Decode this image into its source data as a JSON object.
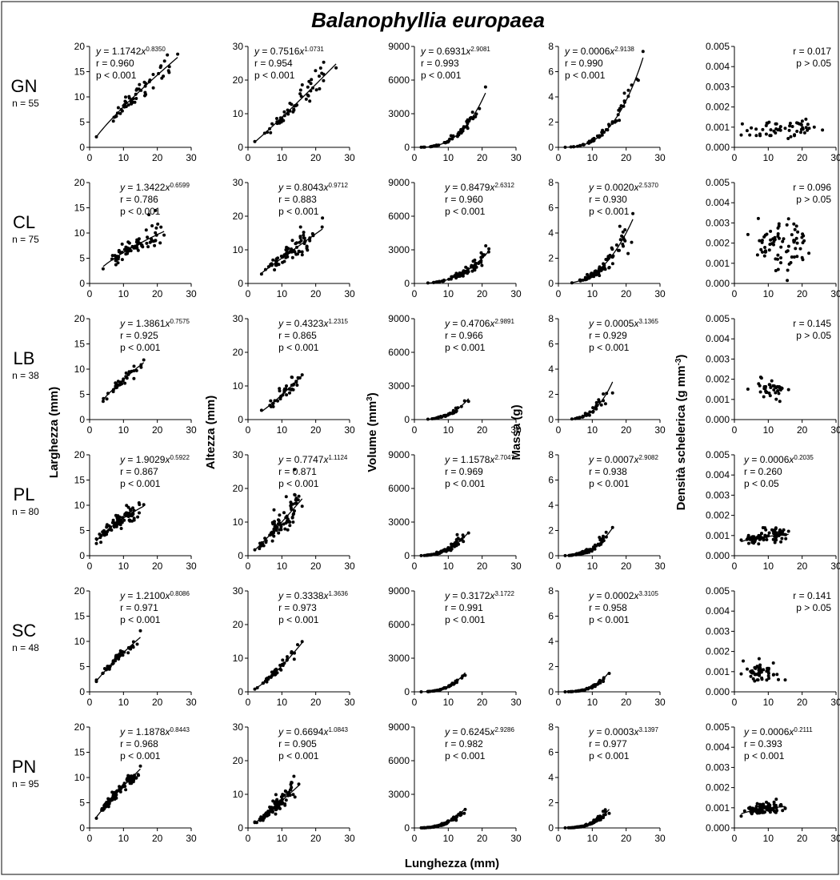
{
  "title": "Balanophyllia europaea",
  "xlabel": "Lunghezza (mm)",
  "ylabels": [
    "Larghezza (mm)",
    "Altezza (mm)",
    "Volume (mm",
    "Massa (g)",
    "Densità schelerica (g mm"
  ],
  "ylabel_sup": [
    "",
    "",
    "3",
    "",
    "-3"
  ],
  "ylabel_close": [
    "",
    "",
    ")",
    "",
    ")"
  ],
  "sites": [
    {
      "code": "GN",
      "n": "n = 55"
    },
    {
      "code": "CL",
      "n": "n = 75"
    },
    {
      "code": "LB",
      "n": "n = 38"
    },
    {
      "code": "PL",
      "n": "n = 80"
    },
    {
      "code": "SC",
      "n": "n = 48"
    },
    {
      "code": "PN",
      "n": "n = 95"
    }
  ],
  "chart_data": {
    "type": "scatter",
    "x_ticks": [
      "0",
      "10",
      "20",
      "30"
    ],
    "xlim": [
      0,
      30
    ],
    "columns": [
      {
        "name": "Larghezza",
        "ylim": [
          0,
          20
        ],
        "y_ticks": [
          "0",
          "5",
          "10",
          "15",
          "20"
        ]
      },
      {
        "name": "Altezza",
        "ylim": [
          0,
          30
        ],
        "y_ticks": [
          "0",
          "10",
          "20",
          "30"
        ]
      },
      {
        "name": "Volume",
        "ylim": [
          0,
          9000
        ],
        "y_ticks": [
          "0",
          "3000",
          "6000",
          "9000"
        ]
      },
      {
        "name": "Massa",
        "ylim": [
          0,
          8
        ],
        "y_ticks": [
          "0",
          "2",
          "4",
          "6",
          "8"
        ]
      },
      {
        "name": "Densità",
        "ylim": [
          0,
          0.005
        ],
        "y_ticks": [
          "0.000",
          "0.001",
          "0.002",
          "0.003",
          "0.004",
          "0.005"
        ]
      }
    ],
    "panels": [
      [
        {
          "a": 1.1742,
          "b": 0.835,
          "coef": "1.1742",
          "exp": "0.8350",
          "r": "r = 0.960",
          "p": "p < 0.001",
          "xr": [
            2,
            26
          ],
          "scatter": 0.09
        },
        {
          "a": 0.7516,
          "b": 1.0731,
          "coef": "0.7516",
          "exp": "1.0731",
          "r": "r = 0.954",
          "p": "p < 0.001",
          "xr": [
            2,
            26
          ],
          "scatter": 0.12
        },
        {
          "a": 0.6931,
          "b": 2.9081,
          "coef": "0.6931",
          "exp": "2.9081",
          "r": "r = 0.993",
          "p": "p < 0.001",
          "xr": [
            2,
            21
          ],
          "scatter": 0.1
        },
        {
          "a": 0.0006,
          "b": 2.9138,
          "coef": "0.0006",
          "exp": "2.9138",
          "r": "r = 0.990",
          "p": "p < 0.001",
          "xr": [
            2,
            25
          ],
          "scatter": 0.12
        },
        {
          "eq": false,
          "mean": 0.00095,
          "sd": 0.0002,
          "r": "r = 0.017",
          "p": "p > 0.05",
          "xr": [
            2,
            26
          ]
        }
      ],
      [
        {
          "a": 1.3422,
          "b": 0.6599,
          "coef": "1.3422",
          "exp": "0.6599",
          "r": "r = 0.786",
          "p": "p < 0.001",
          "xr": [
            4,
            22
          ],
          "scatter": 0.14
        },
        {
          "a": 0.8043,
          "b": 0.9712,
          "coef": "0.8043",
          "exp": "0.9712",
          "r": "r = 0.883",
          "p": "p < 0.001",
          "xr": [
            4,
            22
          ],
          "scatter": 0.15
        },
        {
          "a": 0.8479,
          "b": 2.6312,
          "coef": "0.8479",
          "exp": "2.6312",
          "r": "r = 0.960",
          "p": "p < 0.001",
          "xr": [
            4,
            22
          ],
          "scatter": 0.18
        },
        {
          "a": 0.002,
          "b": 2.537,
          "coef": "0.0020",
          "exp": "2.5370",
          "r": "r = 0.930",
          "p": "p < 0.001",
          "xr": [
            4,
            22
          ],
          "scatter": 0.2
        },
        {
          "eq": false,
          "mean": 0.0018,
          "sd": 0.0006,
          "r": "r = 0.096",
          "p": "p > 0.05",
          "xr": [
            4,
            22
          ]
        }
      ],
      [
        {
          "a": 1.3861,
          "b": 0.7575,
          "coef": "1.3861",
          "exp": "0.7575",
          "r": "r = 0.925",
          "p": "p < 0.001",
          "xr": [
            4,
            16
          ],
          "scatter": 0.08
        },
        {
          "a": 0.4323,
          "b": 1.2315,
          "coef": "0.4323",
          "exp": "1.2315",
          "r": "r = 0.865",
          "p": "p < 0.001",
          "xr": [
            4,
            16
          ],
          "scatter": 0.14
        },
        {
          "a": 0.4706,
          "b": 2.9891,
          "coef": "0.4706",
          "exp": "2.9891",
          "r": "r = 0.966",
          "p": "p < 0.001",
          "xr": [
            4,
            16
          ],
          "scatter": 0.16
        },
        {
          "a": 0.0005,
          "b": 3.1365,
          "coef": "0.0005",
          "exp": "3.1365",
          "r": "r = 0.929",
          "p": "p < 0.001",
          "xr": [
            4,
            16
          ],
          "scatter": 0.18
        },
        {
          "eq": false,
          "mean": 0.0015,
          "sd": 0.0003,
          "r": "r = 0.145",
          "p": "p > 0.05",
          "xr": [
            4,
            16
          ]
        }
      ],
      [
        {
          "a": 1.9029,
          "b": 0.5922,
          "coef": "1.9029",
          "exp": "0.5922",
          "r": "r = 0.867",
          "p": "p < 0.001",
          "xr": [
            2,
            16
          ],
          "scatter": 0.1
        },
        {
          "a": 0.7747,
          "b": 1.1124,
          "coef": "0.7747",
          "exp": "1.1124",
          "r": "r = 0.871",
          "p": "p < 0.001",
          "xr": [
            2,
            16
          ],
          "scatter": 0.18
        },
        {
          "a": 1.1578,
          "b": 2.7047,
          "coef": "1.1578",
          "exp": "2.7047",
          "r": "r = 0.969",
          "p": "p < 0.001",
          "xr": [
            2,
            16
          ],
          "scatter": 0.18
        },
        {
          "a": 0.0007,
          "b": 2.9082,
          "coef": "0.0007",
          "exp": "2.9082",
          "r": "r = 0.938",
          "p": "p < 0.001",
          "xr": [
            2,
            16
          ],
          "scatter": 0.2
        },
        {
          "a": 0.0006,
          "b": 0.2035,
          "coef": "0.0006",
          "exp": "0.2035",
          "r": "r = 0.260",
          "p": "p < 0.05",
          "xr": [
            2,
            16
          ],
          "scatter": 0.18
        }
      ],
      [
        {
          "a": 1.21,
          "b": 0.8086,
          "coef": "1.2100",
          "exp": "0.8086",
          "r": "r = 0.971",
          "p": "p < 0.001",
          "xr": [
            2,
            15
          ],
          "scatter": 0.06
        },
        {
          "a": 0.3338,
          "b": 1.3636,
          "coef": "0.3338",
          "exp": "1.3636",
          "r": "r = 0.973",
          "p": "p < 0.001",
          "xr": [
            2,
            16
          ],
          "scatter": 0.08
        },
        {
          "a": 0.3172,
          "b": 3.1722,
          "coef": "0.3172",
          "exp": "3.1722",
          "r": "r = 0.991",
          "p": "p < 0.001",
          "xr": [
            2,
            15
          ],
          "scatter": 0.08
        },
        {
          "a": 0.0002,
          "b": 3.3105,
          "coef": "0.0002",
          "exp": "3.3105",
          "r": "r = 0.958",
          "p": "p < 0.001",
          "xr": [
            2,
            15
          ],
          "scatter": 0.12
        },
        {
          "eq": false,
          "mean": 0.001,
          "sd": 0.00025,
          "r": "r = 0.141",
          "p": "p > 0.05",
          "xr": [
            2,
            15
          ]
        }
      ],
      [
        {
          "a": 1.1878,
          "b": 0.8443,
          "coef": "1.1878",
          "exp": "0.8443",
          "r": "r = 0.968",
          "p": "p < 0.001",
          "xr": [
            2,
            15
          ],
          "scatter": 0.07
        },
        {
          "a": 0.6694,
          "b": 1.0843,
          "coef": "0.6694",
          "exp": "1.0843",
          "r": "r = 0.905",
          "p": "p < 0.001",
          "xr": [
            2,
            15
          ],
          "scatter": 0.15
        },
        {
          "a": 0.6245,
          "b": 2.9286,
          "coef": "0.6245",
          "exp": "2.9286",
          "r": "r = 0.982",
          "p": "p < 0.001",
          "xr": [
            2,
            15
          ],
          "scatter": 0.14
        },
        {
          "a": 0.0003,
          "b": 3.1397,
          "coef": "0.0003",
          "exp": "3.1397",
          "r": "r = 0.977",
          "p": "p < 0.001",
          "xr": [
            2,
            15
          ],
          "scatter": 0.15
        },
        {
          "a": 0.0006,
          "b": 0.2111,
          "coef": "0.0006",
          "exp": "0.2111",
          "r": "r = 0.393",
          "p": "p < 0.001",
          "xr": [
            2,
            15
          ],
          "scatter": 0.14
        }
      ]
    ]
  }
}
